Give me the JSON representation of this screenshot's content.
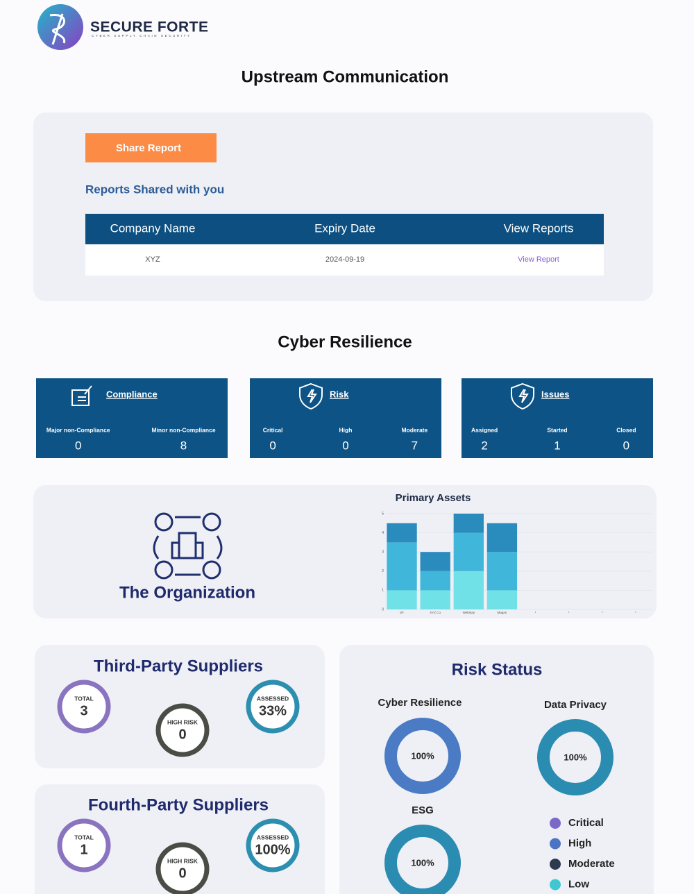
{
  "header": {
    "brand": "SECURE FORTE",
    "tagline": "CYBER SUPPLY CHAIN SECURITY"
  },
  "upstream": {
    "title": "Upstream Communication",
    "share_button": "Share Report",
    "subtitle": "Reports Shared with you",
    "table": {
      "columns": [
        "Company Name",
        "Expiry Date",
        "View Reports"
      ],
      "rows": [
        [
          "XYZ",
          "2024-09-19",
          "View Report"
        ]
      ]
    }
  },
  "cyber_resilience": {
    "title": "Cyber Resilience",
    "cards": [
      {
        "title": "Compliance",
        "metrics": [
          {
            "label": "Major non-Compliance",
            "value": 0
          },
          {
            "label": "Minor non-Compliance",
            "value": 8
          }
        ]
      },
      {
        "title": "Risk",
        "metrics": [
          {
            "label": "Critical",
            "value": 0
          },
          {
            "label": "High",
            "value": 0
          },
          {
            "label": "Moderate",
            "value": 7
          }
        ]
      },
      {
        "title": "Issues",
        "metrics": [
          {
            "label": "Assigned",
            "value": 2
          },
          {
            "label": "Started",
            "value": 1
          },
          {
            "label": "Closed",
            "value": 0
          }
        ]
      }
    ]
  },
  "organization": {
    "label": "The Organization",
    "chart_data": {
      "type": "bar",
      "stacked": true,
      "title": "Primary Assets",
      "categories": [
        "SF",
        "XYZ Co",
        "Webstay",
        "Magan",
        null,
        null,
        null,
        null
      ],
      "series": [
        {
          "color": "#6fe1e7",
          "values": [
            1,
            1,
            2,
            1,
            null,
            null,
            null,
            null
          ]
        },
        {
          "color": "#3fb6da",
          "values": [
            2.5,
            1,
            2,
            2,
            null,
            null,
            null,
            null
          ]
        },
        {
          "color": "#2a8cbd",
          "values": [
            1,
            1,
            1,
            1.5,
            null,
            null,
            null,
            null
          ]
        }
      ],
      "ylim": [
        0,
        5
      ],
      "yticks": [
        0,
        1,
        2,
        3,
        4,
        5
      ],
      "grid": true
    }
  },
  "suppliers": [
    {
      "title": "Third-Party Suppliers",
      "stats": [
        {
          "label": "TOTAL",
          "value": "3"
        },
        {
          "label": "HIGH RISK",
          "value": "0"
        },
        {
          "label": "ASSESSED",
          "value": "33%"
        }
      ]
    },
    {
      "title": "Fourth-Party Suppliers",
      "stats": [
        {
          "label": "TOTAL",
          "value": "1"
        },
        {
          "label": "HIGH RISK",
          "value": "0"
        },
        {
          "label": "ASSESSED",
          "value": "100%"
        }
      ]
    }
  ],
  "risk_status": {
    "title": "Risk Status",
    "charts": [
      {
        "name": "Cyber Resilience",
        "value": 100,
        "label": "100%",
        "color": "#4a7bc4"
      },
      {
        "name": "Data Privacy",
        "value": 100,
        "label": "100%",
        "color": "#2a8cb1"
      },
      {
        "name": "ESG",
        "value": 100,
        "label": "100%",
        "color": "#2a8cb1"
      }
    ],
    "legend": [
      {
        "name": "Critical",
        "color": "#7b68c8"
      },
      {
        "name": "High",
        "color": "#4a74c4"
      },
      {
        "name": "Moderate",
        "color": "#2e3a4e"
      },
      {
        "name": "Low",
        "color": "#3fc8d1"
      }
    ]
  }
}
